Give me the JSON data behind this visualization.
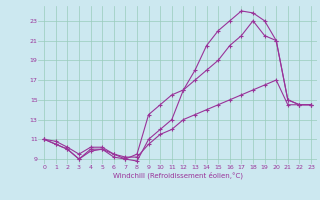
{
  "background_color": "#cce8f0",
  "grid_color": "#99ccbb",
  "line_color": "#993399",
  "marker": "+",
  "xlabel": "Windchill (Refroidissement éolien,°C)",
  "xlim": [
    -0.5,
    23.5
  ],
  "ylim": [
    8.5,
    24.5
  ],
  "yticks": [
    9,
    11,
    13,
    15,
    17,
    19,
    21,
    23
  ],
  "xticks": [
    0,
    1,
    2,
    3,
    4,
    5,
    6,
    7,
    8,
    9,
    10,
    11,
    12,
    13,
    14,
    15,
    16,
    17,
    18,
    19,
    20,
    21,
    22,
    23
  ],
  "series1_x": [
    0,
    1,
    2,
    3,
    4,
    5,
    6,
    7,
    8,
    9,
    10,
    11,
    12,
    13,
    14,
    15,
    16,
    17,
    18,
    19,
    20,
    21,
    22,
    23
  ],
  "series1_y": [
    11,
    10.5,
    10,
    9,
    10,
    10,
    9.5,
    9,
    8.8,
    11,
    12,
    13,
    16,
    18,
    20.5,
    22,
    23,
    24,
    23.8,
    23,
    21,
    15,
    14.5,
    14.5
  ],
  "series2_x": [
    0,
    1,
    2,
    3,
    4,
    5,
    6,
    7,
    8,
    9,
    10,
    11,
    12,
    13,
    14,
    15,
    16,
    17,
    18,
    19,
    20,
    21,
    22,
    23
  ],
  "series2_y": [
    11,
    10.5,
    10,
    9,
    9.8,
    10,
    9.2,
    9,
    9.5,
    13.5,
    14.5,
    15.5,
    16,
    17,
    18,
    19,
    20.5,
    21.5,
    23,
    21.5,
    21,
    15,
    14.5,
    14.5
  ],
  "series3_x": [
    0,
    1,
    2,
    3,
    4,
    5,
    6,
    7,
    8,
    9,
    10,
    11,
    12,
    13,
    14,
    15,
    16,
    17,
    18,
    19,
    20,
    21,
    22,
    23
  ],
  "series3_y": [
    11,
    10.8,
    10.2,
    9.5,
    10.2,
    10.2,
    9.5,
    9.2,
    9.2,
    10.5,
    11.5,
    12,
    13,
    13.5,
    14,
    14.5,
    15,
    15.5,
    16,
    16.5,
    17,
    14.5,
    14.5,
    14.5
  ]
}
